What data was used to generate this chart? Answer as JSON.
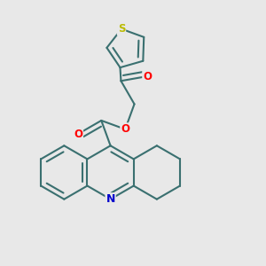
{
  "bg_color": "#e8e8e8",
  "bond_color": "#3a7070",
  "bond_width": 1.5,
  "atom_colors": {
    "O": "#ff0000",
    "N": "#0000cc",
    "S": "#bbbb00",
    "C": "#3a7070"
  },
  "figsize": [
    3.0,
    3.0
  ],
  "dpi": 100
}
